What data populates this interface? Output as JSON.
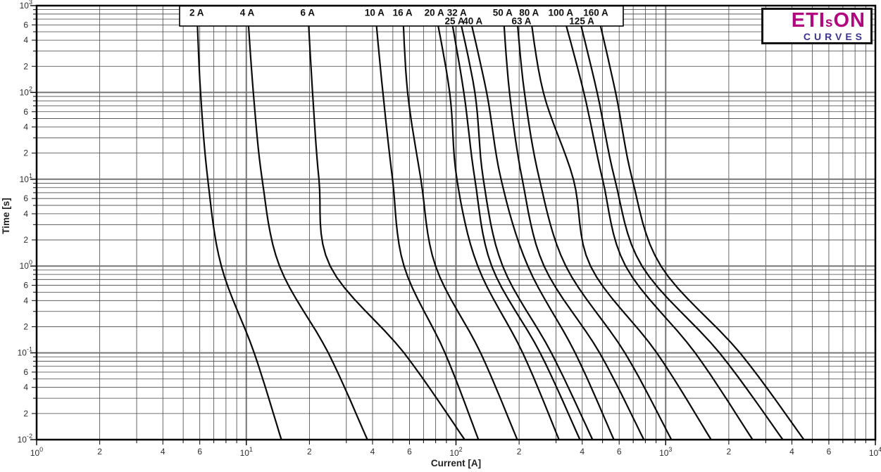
{
  "logo": {
    "brand_prefix": "ETI",
    "brand_s": "s",
    "brand_suffix": "ON",
    "tagline": "CURVES",
    "brand_color": "#b1067f",
    "tagline_color": "#3d3291"
  },
  "chart_data": {
    "type": "line",
    "title": "",
    "xlabel": "Current [A]",
    "ylabel": "Time [s]",
    "x_scale": "log",
    "y_scale": "log",
    "xlim": [
      1,
      10000
    ],
    "ylim": [
      0.01,
      1000
    ],
    "x_decade_exponents": [
      0,
      1,
      2,
      3,
      4
    ],
    "y_decade_exponents": [
      3,
      2,
      1,
      0,
      -1,
      -2
    ],
    "labeled_minors": [
      2,
      4,
      6
    ],
    "tick_label_base": "10",
    "grid": "log major+minor, full frame",
    "curve_color": "#0a0a0a",
    "grid_minor_color": "#444444",
    "grid_major_color": "#767676",
    "frame_color": "#000000",
    "time_values_s": [
      1000,
      100,
      10,
      1,
      0.1,
      0.01
    ],
    "series": [
      {
        "name": "2 A",
        "rating_A": 2,
        "label_row": 1,
        "currents_A": [
          5.8,
          6.05,
          6.55,
          7.6,
          10.9,
          14.7
        ]
      },
      {
        "name": "4 A",
        "rating_A": 4,
        "label_row": 1,
        "currents_A": [
          10.1,
          10.8,
          11.9,
          14.4,
          24.6,
          37.8
        ]
      },
      {
        "name": "6 A",
        "rating_A": 6,
        "label_row": 1,
        "currents_A": [
          19.6,
          20.7,
          22.2,
          25.1,
          56.5,
          110
        ]
      },
      {
        "name": "10 A",
        "rating_A": 10,
        "label_row": 1,
        "currents_A": [
          40.9,
          44.8,
          49.8,
          56.5,
          88.6,
          128
        ]
      },
      {
        "name": "16 A",
        "rating_A": 16,
        "label_row": 1,
        "currents_A": [
          55.6,
          58.8,
          68.0,
          79.9,
          131,
          196
        ]
      },
      {
        "name": "20 A",
        "rating_A": 20,
        "label_row": 1,
        "currents_A": [
          78.8,
          93.3,
          101,
          127,
          208,
          310
        ]
      },
      {
        "name": "25 A",
        "rating_A": 25,
        "label_row": 2,
        "currents_A": [
          92.6,
          109,
          123,
          148,
          252,
          390
        ]
      },
      {
        "name": "32 A",
        "rating_A": 32,
        "label_row": 1,
        "currents_A": [
          101,
          123,
          135,
          167,
          285,
          448
        ]
      },
      {
        "name": "40 A",
        "rating_A": 40,
        "label_row": 2,
        "currents_A": [
          113,
          140,
          164,
          220,
          370,
          566
        ]
      },
      {
        "name": "50 A",
        "rating_A": 50,
        "label_row": 1,
        "currents_A": [
          167,
          180,
          207,
          263,
          484,
          787
        ]
      },
      {
        "name": "63 A",
        "rating_A": 63,
        "label_row": 2,
        "currents_A": [
          193,
          212,
          250,
          334,
          639,
          1065
        ]
      },
      {
        "name": "80 A",
        "rating_A": 80,
        "label_row": 1,
        "currents_A": [
          223,
          261,
          363,
          438,
          907,
          1647
        ]
      },
      {
        "name": "100 A",
        "rating_A": 100,
        "label_row": 1,
        "currents_A": [
          316,
          407,
          500,
          644,
          1382,
          2598
        ]
      },
      {
        "name": "125 A",
        "rating_A": 125,
        "label_row": 2,
        "currents_A": [
          374,
          471,
          572,
          771,
          1806,
          3620
        ]
      },
      {
        "name": "160 A",
        "rating_A": 160,
        "label_row": 1,
        "currents_A": [
          464,
          577,
          693,
          949,
          2260,
          4562
        ]
      }
    ],
    "legend_position": "top label band inside plot"
  }
}
